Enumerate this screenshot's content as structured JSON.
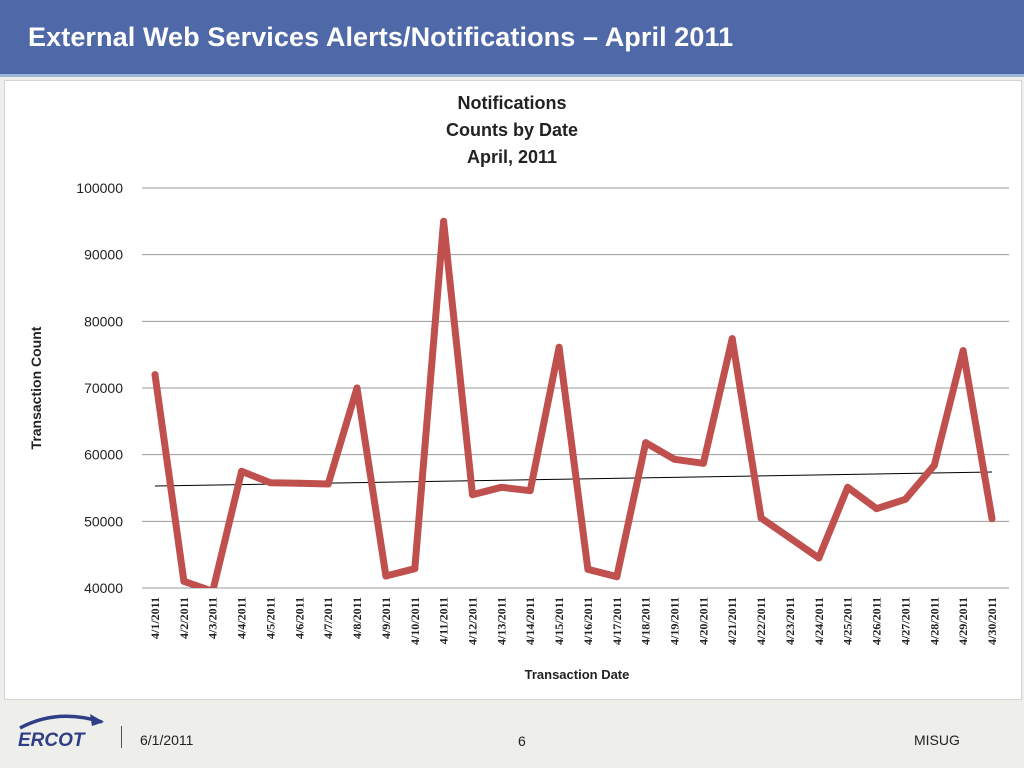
{
  "header": {
    "title": "External Web Services Alerts/Notifications – April 2011"
  },
  "footer": {
    "date": "6/1/2011",
    "page": "6",
    "org": "MISUG",
    "logo_text": "ERCOT"
  },
  "colors": {
    "title_bar": "#4f68a8",
    "series": "#c0504d",
    "trend": "#000000"
  },
  "chart_data": {
    "type": "line",
    "title": [
      "Notifications",
      "Counts by Date",
      "April, 2011"
    ],
    "xlabel": "Transaction Date",
    "ylabel": "Transaction Count",
    "ylim": [
      40000,
      100000
    ],
    "yticks": [
      "40000",
      "50000",
      "60000",
      "70000",
      "80000",
      "90000",
      "100000"
    ],
    "grid": true,
    "categories": [
      "4/1/2011",
      "4/2/2011",
      "4/3/2011",
      "4/4/2011",
      "4/5/2011",
      "4/6/2011",
      "4/7/2011",
      "4/8/2011",
      "4/9/2011",
      "4/10/2011",
      "4/11/2011",
      "4/12/2011",
      "4/13/2011",
      "4/14/2011",
      "4/15/2011",
      "4/16/2011",
      "4/17/2011",
      "4/18/2011",
      "4/19/2011",
      "4/20/2011",
      "4/21/2011",
      "4/22/2011",
      "4/23/2011",
      "4/24/2011",
      "4/25/2011",
      "4/26/2011",
      "4/27/2011",
      "4/28/2011",
      "4/29/2011",
      "4/30/2011"
    ],
    "series": [
      {
        "values": [
          72000,
          41000,
          39500,
          57500,
          55800,
          55700,
          55600,
          70000,
          41800,
          42900,
          95000,
          54000,
          55100,
          54600,
          76100,
          42800,
          41700,
          61800,
          59300,
          58700,
          77400,
          50500,
          47500,
          44500,
          55100,
          51900,
          53300,
          58400,
          75600,
          50400
        ]
      }
    ],
    "trendline": [
      55300,
      57400
    ]
  }
}
